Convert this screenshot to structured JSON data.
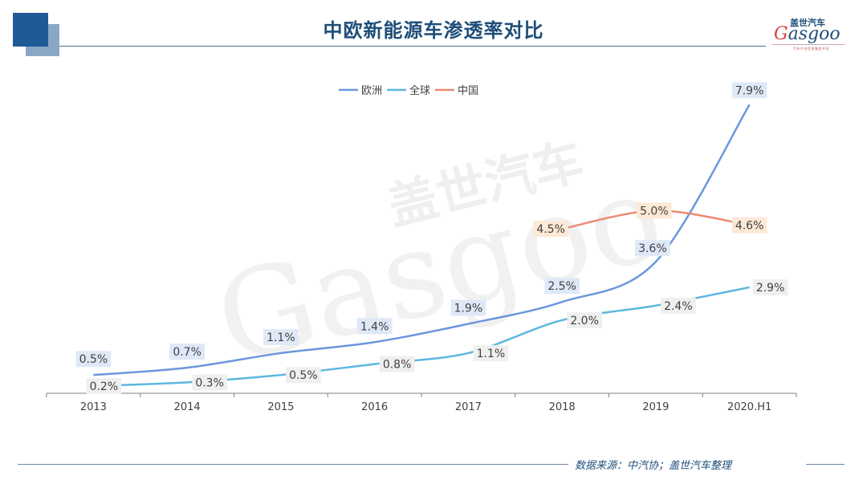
{
  "header": {
    "title": "中欧新能源车渗透率对比",
    "logo_cn": "盖世汽车",
    "logo_en_g": "G",
    "logo_en_rest": "asgoo",
    "logo_sub": "汽车产业信息服务平台"
  },
  "watermark": {
    "cn": "盖世汽车",
    "en": "Gasgoo"
  },
  "footer": {
    "source": "数据来源：中汽协；盖世汽车整理"
  },
  "colors": {
    "europe": "#6b97dd",
    "global": "#5bb8e0",
    "china": "#ec8a72",
    "europe_label_bg": "#dfe8f7",
    "global_label_bg": "#efefef",
    "china_label_bg": "#fce9d6",
    "title": "#1f4e79"
  },
  "chart_data": {
    "type": "line",
    "categories": [
      "2013",
      "2014",
      "2015",
      "2016",
      "2017",
      "2018",
      "2019",
      "2020.H1"
    ],
    "series": [
      {
        "name": "欧洲",
        "values": [
          0.5,
          0.7,
          1.1,
          1.4,
          1.9,
          2.5,
          3.6,
          7.9
        ],
        "labels": [
          "0.5%",
          "0.7%",
          "1.1%",
          "1.4%",
          "1.9%",
          "2.5%",
          "3.6%",
          "7.9%"
        ]
      },
      {
        "name": "全球",
        "values": [
          0.2,
          0.3,
          0.5,
          0.8,
          1.1,
          2.0,
          2.4,
          2.9
        ],
        "labels": [
          "0.2%",
          "0.3%",
          "0.5%",
          "0.8%",
          "1.1%",
          "2.0%",
          "2.4%",
          "2.9%"
        ]
      },
      {
        "name": "中国",
        "values": [
          null,
          null,
          null,
          null,
          null,
          4.5,
          5.0,
          4.6
        ],
        "labels": [
          "",
          "",
          "",
          "",
          "",
          "4.5%",
          "5.0%",
          "4.6%"
        ]
      }
    ],
    "ylim": [
      0,
      8.7
    ],
    "legend_position": "top-center",
    "grid": false
  }
}
